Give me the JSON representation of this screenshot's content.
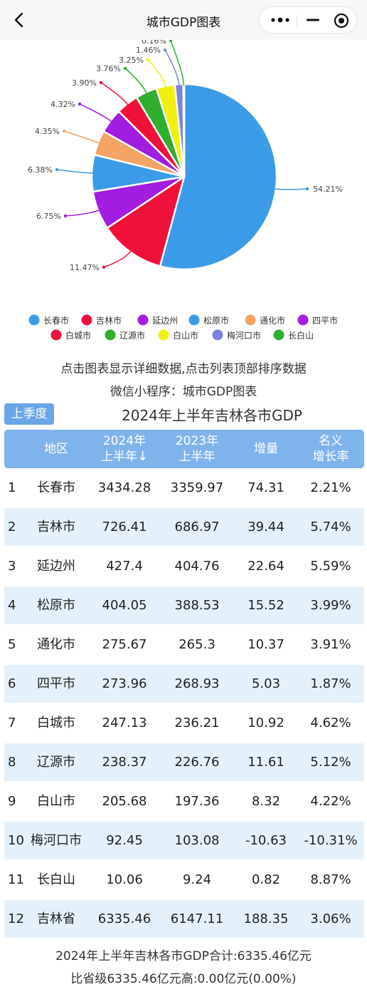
{
  "nav": {
    "title": "城市GDP图表"
  },
  "chart_data": {
    "type": "pie",
    "categories": [
      "长春市",
      "吉林市",
      "延边州",
      "松原市",
      "通化市",
      "四平市",
      "白城市",
      "辽源市",
      "白山市",
      "梅河口市",
      "长白山"
    ],
    "values": [
      54.21,
      11.47,
      6.75,
      6.38,
      4.35,
      4.32,
      3.9,
      3.76,
      3.25,
      1.46,
      0.16
    ],
    "labels": [
      "54.21%",
      "11.47%",
      "6.75%",
      "6.38%",
      "4.35%",
      "4.32%",
      "3.90%",
      "3.76%",
      "3.25%",
      "1.46%",
      "0.16%"
    ],
    "colors": [
      "#3c9be9",
      "#f0113b",
      "#a21de0",
      "#3c9be9",
      "#f4a464",
      "#a21de0",
      "#f0113b",
      "#2fae2f",
      "#f0f010",
      "#7b83de",
      "#2fae2f"
    ],
    "legend": [
      "长春市",
      "吉林市",
      "延边州",
      "松原市",
      "通化市",
      "四平市",
      "白城市",
      "辽源市",
      "白山市",
      "梅河口市",
      "长白山"
    ],
    "legend_position": "bottom"
  },
  "hints": {
    "line1": "点击图表显示详细数据,点击列表顶部排序数据",
    "line2": "微信小程序：城市GDP图表"
  },
  "season_button": "上季度",
  "table": {
    "title": "2024年上半年吉林各市GDP",
    "headers": {
      "region": "地区",
      "y2024_l1": "2024年",
      "y2024_l2": "上半年",
      "sort_arrow": "↓",
      "y2023_l1": "2023年",
      "y2023_l2": "上半年",
      "increase": "增量",
      "rate_l1": "名义",
      "rate_l2": "增长率"
    },
    "rows": [
      {
        "idx": "1",
        "name": "长春市",
        "v2024": "3434.28",
        "v2023": "3359.97",
        "inc": "74.31",
        "rate": "2.21%"
      },
      {
        "idx": "2",
        "name": "吉林市",
        "v2024": "726.41",
        "v2023": "686.97",
        "inc": "39.44",
        "rate": "5.74%"
      },
      {
        "idx": "3",
        "name": "延边州",
        "v2024": "427.4",
        "v2023": "404.76",
        "inc": "22.64",
        "rate": "5.59%"
      },
      {
        "idx": "4",
        "name": "松原市",
        "v2024": "404.05",
        "v2023": "388.53",
        "inc": "15.52",
        "rate": "3.99%"
      },
      {
        "idx": "5",
        "name": "通化市",
        "v2024": "275.67",
        "v2023": "265.3",
        "inc": "10.37",
        "rate": "3.91%"
      },
      {
        "idx": "6",
        "name": "四平市",
        "v2024": "273.96",
        "v2023": "268.93",
        "inc": "5.03",
        "rate": "1.87%"
      },
      {
        "idx": "7",
        "name": "白城市",
        "v2024": "247.13",
        "v2023": "236.21",
        "inc": "10.92",
        "rate": "4.62%"
      },
      {
        "idx": "8",
        "name": "辽源市",
        "v2024": "238.37",
        "v2023": "226.76",
        "inc": "11.61",
        "rate": "5.12%"
      },
      {
        "idx": "9",
        "name": "白山市",
        "v2024": "205.68",
        "v2023": "197.36",
        "inc": "8.32",
        "rate": "4.22%"
      },
      {
        "idx": "10",
        "name": "梅河口市",
        "v2024": "92.45",
        "v2023": "103.08",
        "inc": "-10.63",
        "rate": "-10.31%"
      },
      {
        "idx": "11",
        "name": "长白山",
        "v2024": "10.06",
        "v2023": "9.24",
        "inc": "0.82",
        "rate": "8.87%"
      },
      {
        "idx": "12",
        "name": "吉林省",
        "v2024": "6335.46",
        "v2023": "6147.11",
        "inc": "188.35",
        "rate": "3.06%"
      }
    ]
  },
  "footer": {
    "line1": "2024年上半年吉林各市GDP合计:6335.46亿元",
    "line2": "比省级6335.46亿元高:0.00亿元(0.00%)"
  },
  "icons": {
    "back": "back-arrow-icon",
    "more": "more-dots-icon",
    "minimize": "minimize-icon",
    "close": "target-circle-icon"
  }
}
